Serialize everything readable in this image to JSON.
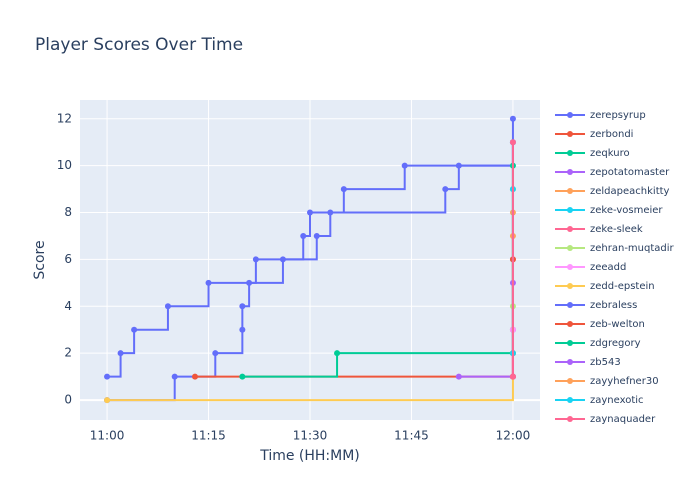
{
  "chart_data": {
    "type": "step-line",
    "title": "Player Scores Over Time",
    "x_label": "Time (HH:MM)",
    "y_label": "Score",
    "xlim": [
      "10:56",
      "12:04"
    ],
    "xticks": [
      "11:00",
      "11:15",
      "11:30",
      "11:45",
      "12:00"
    ],
    "ylim": [
      -0.85,
      12.8
    ],
    "yticks": [
      0,
      2,
      4,
      6,
      8,
      10,
      12
    ],
    "grid": true,
    "legend": "right",
    "series": [
      {
        "name": "zerepsyrup",
        "color": "#636efa",
        "x": [
          "11:00",
          "11:10",
          "11:16",
          "11:20",
          "11:20",
          "11:21",
          "11:26",
          "11:31",
          "11:33",
          "11:50",
          "11:52",
          "12:00"
        ],
        "values": [
          0,
          1,
          2,
          3,
          4,
          5,
          6,
          7,
          8,
          9,
          10,
          11
        ]
      },
      {
        "name": "zerbondi",
        "color": "#EF553B",
        "x": [
          "11:13",
          "12:00"
        ],
        "values": [
          1,
          2
        ]
      },
      {
        "name": "zeqkuro",
        "color": "#00cc96",
        "x": [
          "11:20",
          "11:34",
          "12:00"
        ],
        "values": [
          1,
          2,
          11
        ]
      },
      {
        "name": "zepotatomaster",
        "color": "#ab63fa",
        "x": [
          "11:52",
          "12:00"
        ],
        "values": [
          1,
          3
        ]
      },
      {
        "name": "zeldapeachkitty",
        "color": "#FFA15A",
        "x": [
          "12:00",
          "12:00"
        ],
        "values": [
          1,
          8
        ]
      },
      {
        "name": "zeke-vosmeier",
        "color": "#19d3f3",
        "x": [
          "12:00",
          "12:00"
        ],
        "values": [
          2,
          11
        ]
      },
      {
        "name": "zeke-sleek",
        "color": "#FF6692",
        "x": [
          "12:00",
          "12:00"
        ],
        "values": [
          3,
          6
        ]
      },
      {
        "name": "zehran-muqtadir",
        "color": "#B6E880",
        "x": [
          "12:00",
          "12:00"
        ],
        "values": [
          4,
          9
        ]
      },
      {
        "name": "zeeadd",
        "color": "#FF97FF",
        "x": [
          "12:00",
          "12:00"
        ],
        "values": [
          3,
          11
        ]
      },
      {
        "name": "zedd-epstein",
        "color": "#FECB52",
        "x": [
          "11:00",
          "12:00"
        ],
        "values": [
          0,
          1
        ]
      },
      {
        "name": "zebraless",
        "color": "#636efa",
        "x": [
          "11:00",
          "11:02",
          "11:04",
          "11:09",
          "11:15",
          "11:22",
          "11:29",
          "11:30",
          "11:35",
          "11:44",
          "12:00"
        ],
        "values": [
          1,
          2,
          3,
          4,
          5,
          6,
          7,
          8,
          9,
          10,
          12
        ]
      },
      {
        "name": "zeb-welton",
        "color": "#EF553B",
        "x": [
          "12:00",
          "12:00"
        ],
        "values": [
          1,
          6
        ]
      },
      {
        "name": "zdgregory",
        "color": "#00cc96",
        "x": [
          "12:00",
          "12:00"
        ],
        "values": [
          2,
          10
        ]
      },
      {
        "name": "zb543",
        "color": "#ab63fa",
        "x": [
          "12:00",
          "12:00"
        ],
        "values": [
          1,
          5
        ]
      },
      {
        "name": "zayyhefner30",
        "color": "#FFA15A",
        "x": [
          "12:00",
          "12:00"
        ],
        "values": [
          2,
          7
        ]
      },
      {
        "name": "zaynexotic",
        "color": "#19d3f3",
        "x": [
          "12:00",
          "12:00"
        ],
        "values": [
          2,
          9
        ]
      },
      {
        "name": "zaynaquader",
        "color": "#FF6692",
        "x": [
          "12:00",
          "12:00"
        ],
        "values": [
          1,
          11
        ]
      }
    ]
  }
}
